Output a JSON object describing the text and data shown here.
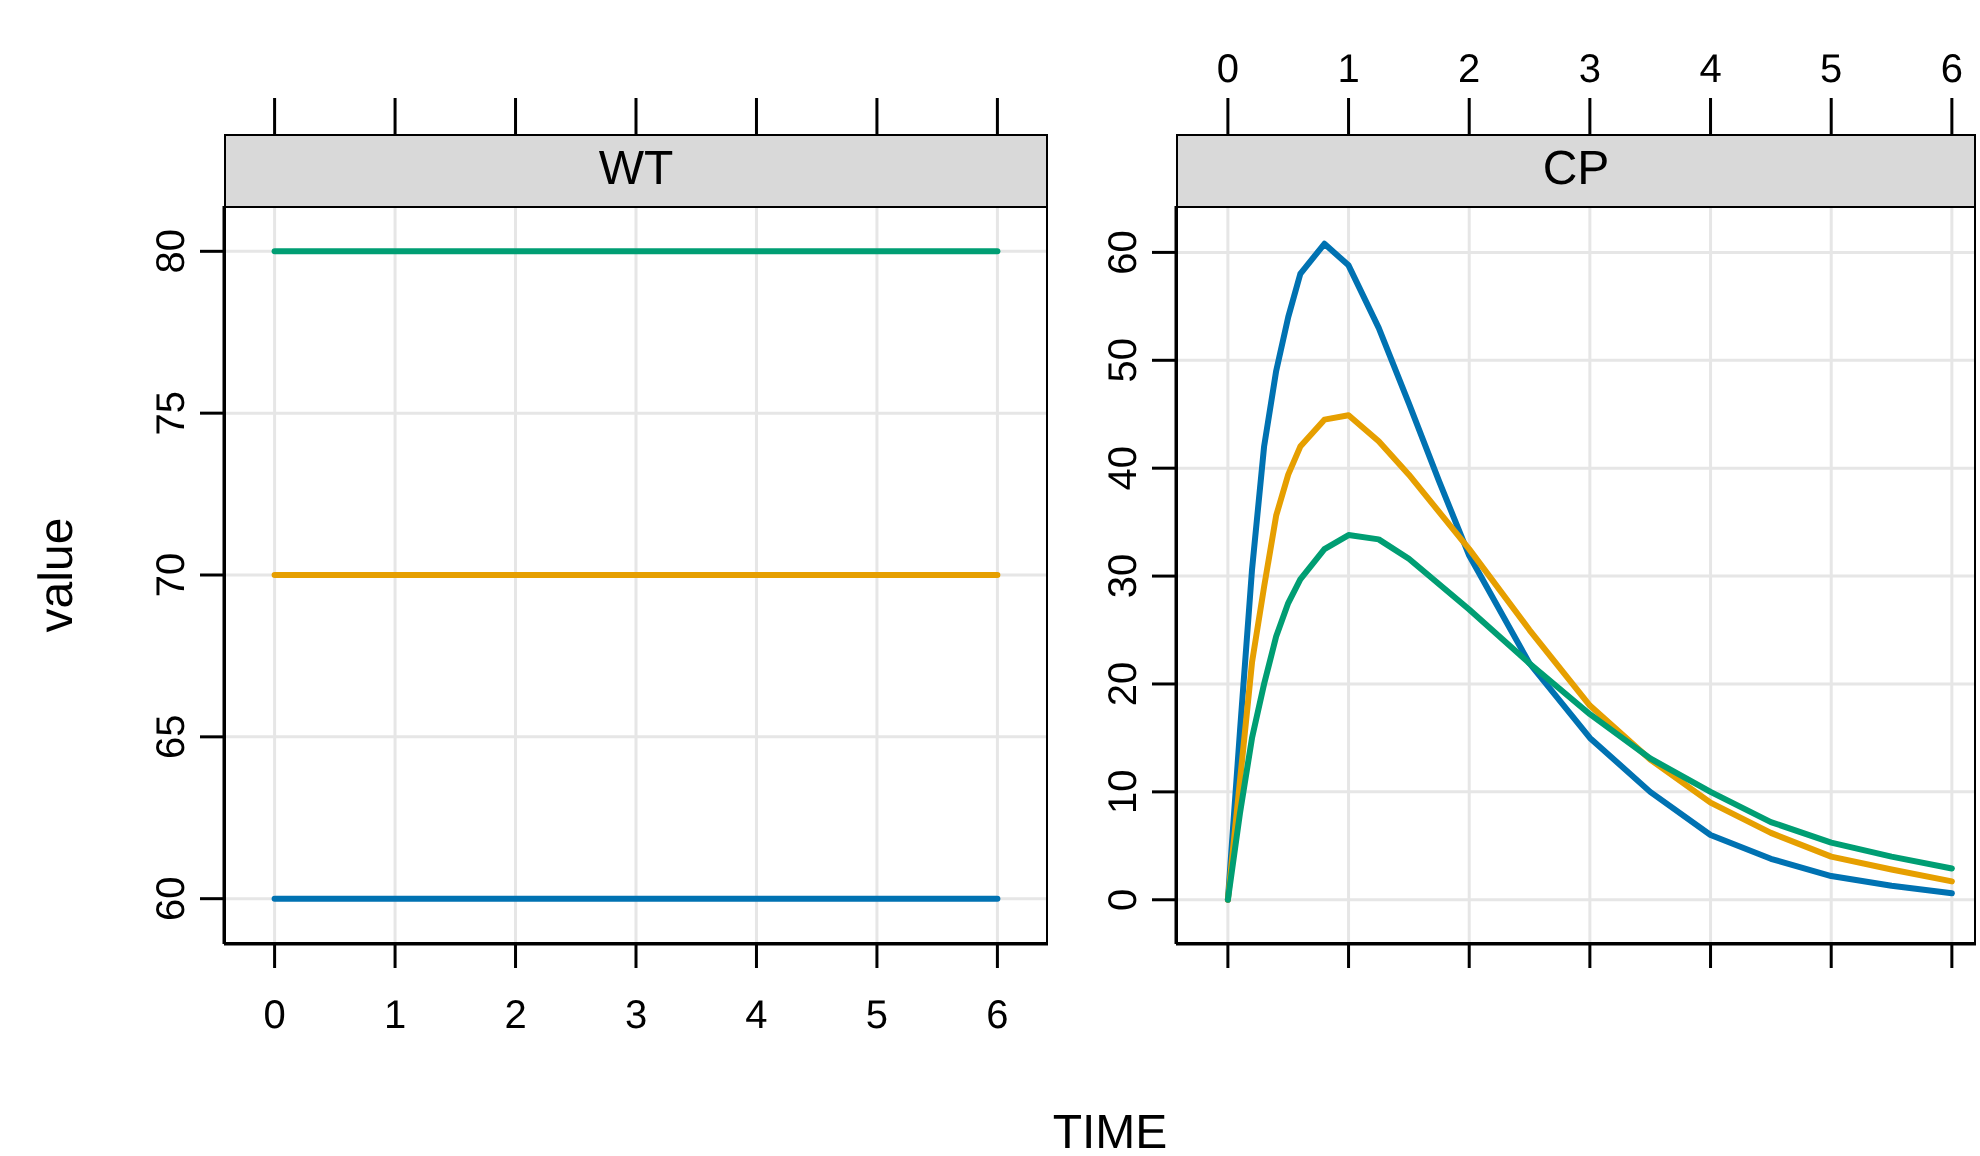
{
  "chart_data": [
    {
      "type": "line",
      "title": "WT",
      "xlabel": "TIME",
      "ylabel": "value",
      "grid": true,
      "xlim": [
        -0.42,
        6.42
      ],
      "xticks": [
        0,
        1,
        2,
        3,
        4,
        5,
        6
      ],
      "ylim": [
        58.6,
        81.4
      ],
      "yticks": [
        60,
        65,
        70,
        75,
        80
      ],
      "series": [
        {
          "color": "#0072b2",
          "x": [
            0,
            6
          ],
          "values": [
            60,
            60
          ]
        },
        {
          "color": "#e69f00",
          "x": [
            0,
            6
          ],
          "values": [
            70,
            70
          ]
        },
        {
          "color": "#009e73",
          "x": [
            0,
            6
          ],
          "values": [
            80,
            80
          ]
        }
      ]
    },
    {
      "type": "line",
      "title": "CP",
      "grid": true,
      "xlim": [
        -0.43,
        6.2
      ],
      "xticks": [
        0,
        1,
        2,
        3,
        4,
        5,
        6
      ],
      "ylim": [
        -4.1,
        64.3
      ],
      "yticks": [
        0,
        10,
        20,
        30,
        40,
        50,
        60
      ],
      "series": [
        {
          "color": "#0072b2",
          "x": [
            0,
            0.1,
            0.2,
            0.3,
            0.4,
            0.5,
            0.6,
            0.8,
            1,
            1.25,
            1.5,
            1.75,
            2,
            2.5,
            3,
            3.5,
            4,
            4.5,
            5,
            5.5,
            6
          ],
          "values": [
            0,
            15.6,
            30.6,
            42,
            49,
            54,
            58,
            60.8,
            58.8,
            53,
            46,
            38.8,
            31.9,
            21.9,
            15,
            10,
            6,
            3.8,
            2.2,
            1.3,
            0.6
          ]
        },
        {
          "color": "#e69f00",
          "x": [
            0,
            0.1,
            0.2,
            0.3,
            0.4,
            0.5,
            0.6,
            0.8,
            1,
            1.25,
            1.5,
            2,
            2.5,
            3,
            3.5,
            4,
            4.5,
            5,
            5.5,
            6
          ],
          "values": [
            0,
            11,
            22,
            29,
            35.6,
            39.4,
            42,
            44.5,
            44.9,
            42.5,
            39.4,
            32.5,
            25,
            18,
            13,
            9,
            6.2,
            4,
            2.8,
            1.7
          ]
        },
        {
          "color": "#009e73",
          "x": [
            0,
            0.1,
            0.2,
            0.3,
            0.4,
            0.5,
            0.6,
            0.8,
            1,
            1.25,
            1.5,
            2,
            2.5,
            3,
            3.5,
            4,
            4.5,
            5,
            5.5,
            6
          ],
          "values": [
            0,
            8,
            15,
            20,
            24.4,
            27.5,
            29.7,
            32.5,
            33.8,
            33.4,
            31.6,
            26.9,
            21.9,
            17.2,
            13.1,
            10,
            7.2,
            5.3,
            4,
            2.9
          ]
        }
      ]
    }
  ]
}
